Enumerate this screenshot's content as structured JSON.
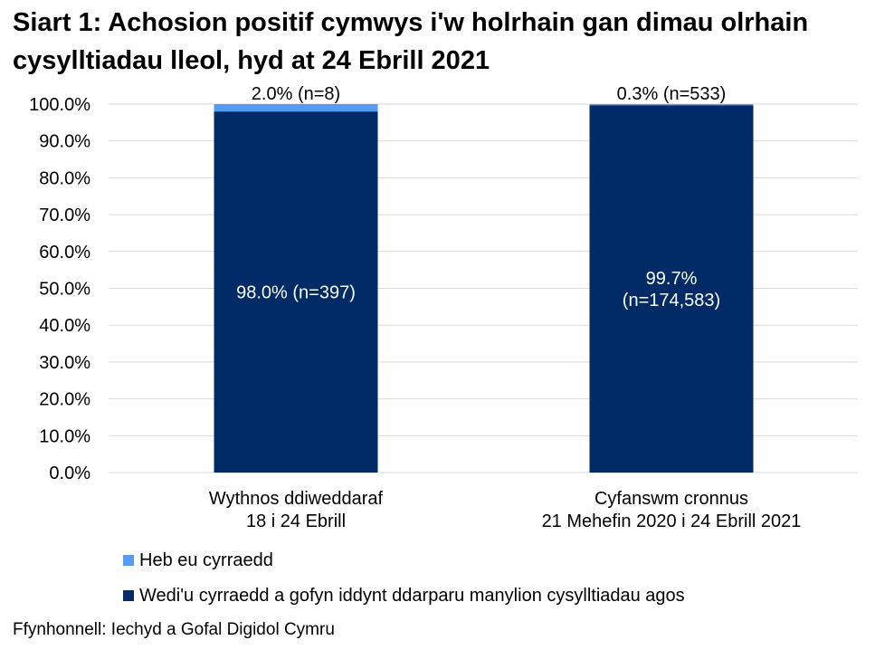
{
  "title": "Siart 1: Achosion positif cymwys i'w holrhain gan dimau olrhain cysylltiadau lleol, hyd at 24 Ebrill 2021",
  "source": "Ffynhonnell: Iechyd a Gofal Digidol Cymru",
  "chart_data": {
    "type": "bar",
    "stacked": true,
    "title": "Siart 1: Achosion positif cymwys i'w holrhain gan dimau olrhain cysylltiadau lleol, hyd at 24 Ebrill 2021",
    "categories": [
      [
        "Wythnos ddiweddaraf",
        "18 i 24 Ebrill"
      ],
      [
        "Cyfanswm cronnus",
        "21 Mehefin 2020 i 24 Ebrill 2021"
      ]
    ],
    "series": [
      {
        "name": "Wedi'u cyrraedd a gofyn iddynt ddarparu manylion cysylltiadau agos",
        "values": [
          98.0,
          99.7
        ],
        "labels": [
          "98.0% (n=397)",
          "99.7%\n(n=174,583)"
        ],
        "color": "#002B66"
      },
      {
        "name": "Heb eu cyrraedd",
        "values": [
          2.0,
          0.3
        ],
        "labels": [
          "2.0% (n=8)",
          "0.3% (n=533)"
        ],
        "color": "#559BF5"
      }
    ],
    "ylim": [
      0,
      100
    ],
    "yticks": [
      "0.0%",
      "10.0%",
      "20.0%",
      "30.0%",
      "40.0%",
      "50.0%",
      "60.0%",
      "70.0%",
      "80.0%",
      "90.0%",
      "100.0%"
    ],
    "grid": true,
    "legend": "bottom-left"
  }
}
